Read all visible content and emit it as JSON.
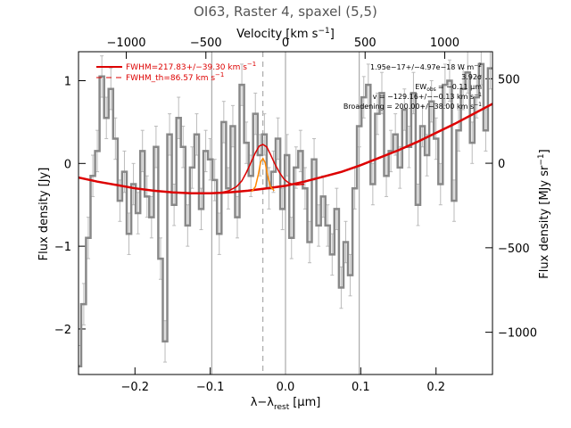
{
  "chart_data": {
    "type": "line",
    "title": "OI63, Raster 4, spaxel (5,5)",
    "xlabel": "λ−λ",
    "xlabel_sub": "rest",
    "xlabel_unit": "[μm]",
    "ylabel": "Flux density [Jy]",
    "x2label": "Velocity [km s",
    "x2label_sup": "−1",
    "x2label_end": "]",
    "y2label": "Flux density [MJy sr",
    "y2label_sup": "−1",
    "y2label_end": "]",
    "xlim": [
      -0.275,
      0.275
    ],
    "ylim": [
      -2.55,
      1.35
    ],
    "x2lim": [
      -1300,
      1300
    ],
    "y2lim": [
      -1250,
      660
    ],
    "grid": false,
    "xticks": [
      -0.2,
      -0.1,
      0.0,
      0.1,
      0.2
    ],
    "xtick_labels": [
      "−0.2",
      "−0.1",
      "0.0",
      "0.1",
      "0.2"
    ],
    "yticks": [
      -2,
      -1,
      0,
      1
    ],
    "ytick_labels": [
      "−2",
      "−1",
      "0",
      "1"
    ],
    "x2ticks": [
      -1000,
      -500,
      0,
      500,
      1000
    ],
    "x2tick_labels": [
      "−1000",
      "−500",
      "0",
      "500",
      "1000"
    ],
    "y2ticks": [
      -1000,
      -500,
      0,
      500
    ],
    "y2tick_labels": [
      "−1000",
      "−500",
      "0",
      "500"
    ],
    "vertical_lines": [
      {
        "x": -0.098,
        "style": "solid",
        "color": "#999999"
      },
      {
        "x": 0.0,
        "style": "solid",
        "color": "#999999"
      },
      {
        "x": 0.098,
        "style": "solid",
        "color": "#999999"
      },
      {
        "x": -0.03,
        "style": "dashed",
        "color": "#999999"
      }
    ],
    "legend": {
      "position": "top-left",
      "entries": [
        {
          "label": "FWHM=217.83+/−39.30 km s",
          "sup": "−1",
          "color": "#dd0000",
          "style": "solid"
        },
        {
          "label": "FWHM_th=86.57 km s",
          "sup": "−1",
          "color": "#dd0000",
          "style": "dashed"
        }
      ]
    },
    "annotations": {
      "position": "top-right",
      "lines": [
        "1.95e−17+/−4.97e−18 W m",
        "3.92σ",
        "EW",
        "v = −129.16+/−−0.13 km s",
        "Broadening = 200.00+/−38.00 km s"
      ],
      "ew_sub": "obs",
      "ew_value": "= −0.11 μm"
    },
    "series": [
      {
        "style": "step",
        "color": "#888888",
        "x": [
          -0.275,
          -0.268,
          -0.262,
          -0.256,
          -0.25,
          -0.244,
          -0.238,
          -0.232,
          -0.226,
          -0.22,
          -0.214,
          -0.208,
          -0.202,
          -0.196,
          -0.19,
          -0.184,
          -0.178,
          -0.172,
          -0.166,
          -0.16,
          -0.154,
          -0.148,
          -0.142,
          -0.136,
          -0.13,
          -0.124,
          -0.118,
          -0.112,
          -0.106,
          -0.1,
          -0.094,
          -0.088,
          -0.082,
          -0.076,
          -0.07,
          -0.064,
          -0.058,
          -0.052,
          -0.046,
          -0.04,
          -0.034,
          -0.028,
          -0.022,
          -0.016,
          -0.01,
          -0.004,
          0.002,
          0.008,
          0.014,
          0.02,
          0.026,
          0.032,
          0.038,
          0.044,
          0.05,
          0.056,
          0.062,
          0.068,
          0.074,
          0.08,
          0.086,
          0.092,
          0.098,
          0.104,
          0.11,
          0.116,
          0.122,
          0.128,
          0.134,
          0.14,
          0.146,
          0.152,
          0.158,
          0.164,
          0.17,
          0.176,
          0.182,
          0.188,
          0.194,
          0.2,
          0.206,
          0.212,
          0.218,
          0.224,
          0.23,
          0.236,
          0.242,
          0.248,
          0.254,
          0.26,
          0.266,
          0.272
        ],
        "y": [
          -2.45,
          -1.7,
          -0.9,
          -0.15,
          0.15,
          1.05,
          0.55,
          0.9,
          0.3,
          -0.45,
          -0.1,
          -0.85,
          -0.25,
          -0.6,
          0.15,
          -0.4,
          -0.65,
          0.2,
          -1.15,
          -2.15,
          0.35,
          -0.5,
          0.55,
          0.2,
          -0.75,
          -0.05,
          0.35,
          -0.55,
          0.15,
          0.05,
          -0.2,
          -0.85,
          0.5,
          -0.3,
          0.45,
          -0.65,
          0.95,
          0.25,
          -0.15,
          0.6,
          0.1,
          0.35,
          -0.3,
          -0.1,
          0.3,
          -0.55,
          0.1,
          -0.9,
          -0.05,
          0.15,
          -0.3,
          -0.95,
          0.05,
          -0.75,
          -0.4,
          -0.75,
          -1.1,
          -0.55,
          -1.5,
          -0.95,
          -1.35,
          -0.3,
          0.45,
          0.8,
          0.95,
          -0.25,
          0.6,
          0.85,
          -0.15,
          0.15,
          0.35,
          -0.05,
          0.65,
          0.2,
          0.85,
          -0.5,
          0.45,
          0.1,
          0.75,
          0.3,
          -0.25,
          0.95,
          1.0,
          -0.45,
          0.4,
          0.9,
          1.1,
          0.25,
          0.8,
          1.2,
          0.4,
          1.15
        ],
        "yerr": 0.25
      },
      {
        "style": "line",
        "color": "#dd0000",
        "x": [
          -0.275,
          -0.25,
          -0.225,
          -0.2,
          -0.175,
          -0.15,
          -0.125,
          -0.1,
          -0.075,
          -0.05,
          -0.025,
          0.0,
          0.025,
          0.05,
          0.075,
          0.1,
          0.125,
          0.15,
          0.175,
          0.2,
          0.225,
          0.25,
          0.275
        ],
        "y": [
          -0.17,
          -0.22,
          -0.26,
          -0.3,
          -0.33,
          -0.35,
          -0.36,
          -0.36,
          -0.35,
          -0.33,
          -0.3,
          -0.27,
          -0.22,
          -0.16,
          -0.1,
          -0.02,
          0.07,
          0.16,
          0.26,
          0.37,
          0.48,
          0.6,
          0.72
        ]
      },
      {
        "style": "line",
        "color": "#dd0000",
        "x": [
          -0.085,
          -0.075,
          -0.065,
          -0.058,
          -0.052,
          -0.046,
          -0.04,
          -0.035,
          -0.03,
          -0.025,
          -0.02,
          -0.014,
          -0.008,
          -0.002,
          0.005,
          0.015,
          0.025
        ],
        "y": [
          -0.35,
          -0.33,
          -0.28,
          -0.21,
          -0.11,
          0.01,
          0.13,
          0.21,
          0.23,
          0.2,
          0.11,
          -0.01,
          -0.11,
          -0.19,
          -0.24,
          -0.26,
          -0.25
        ]
      },
      {
        "style": "line",
        "color": "#ff8800",
        "x": [
          -0.045,
          -0.04,
          -0.036,
          -0.033,
          -0.03,
          -0.027,
          -0.024,
          -0.02,
          -0.015
        ],
        "y": [
          -0.34,
          -0.28,
          -0.13,
          0.02,
          0.06,
          0.01,
          -0.14,
          -0.28,
          -0.33
        ]
      }
    ]
  }
}
